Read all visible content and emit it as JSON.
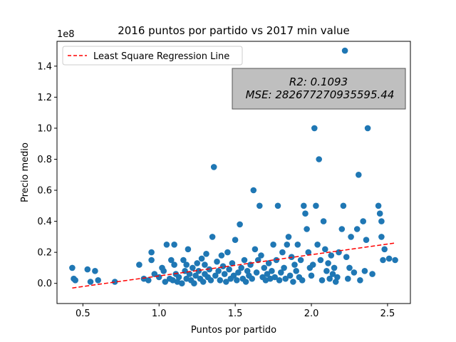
{
  "chart_data": {
    "type": "scatter",
    "title": "2016 puntos por partido vs 2017 min value",
    "xlabel": "Puntos por partido",
    "ylabel": "Precio medio",
    "offset_label": "1e8",
    "xlim": [
      0.33,
      2.65
    ],
    "ylim": [
      -0.13,
      1.56
    ],
    "xticks": [
      0.5,
      1.0,
      1.5,
      2.0,
      2.5
    ],
    "xtick_labels": [
      "0.5",
      "1.0",
      "1.5",
      "2.0",
      "2.5"
    ],
    "yticks": [
      0.0,
      0.2,
      0.4,
      0.6,
      0.8,
      1.0,
      1.2,
      1.4
    ],
    "ytick_labels": [
      "0.0",
      "0.2",
      "0.4",
      "0.6",
      "0.8",
      "1.0",
      "1.2",
      "1.4"
    ],
    "grid": false,
    "legend": {
      "position": "upper-left",
      "entries": [
        "Least Square Regression Line"
      ]
    },
    "regression_line": {
      "x": [
        0.43,
        2.55
      ],
      "y": [
        -0.03,
        0.26
      ],
      "color": "#ff0000",
      "style": "dashed"
    },
    "stats": {
      "r2": "R2: 0.1093",
      "mse": "MSE: 282677270935595.44"
    },
    "marker_color": "#1f77b4",
    "points": [
      [
        0.43,
        0.1
      ],
      [
        0.44,
        0.03
      ],
      [
        0.45,
        0.02
      ],
      [
        0.53,
        0.09
      ],
      [
        0.55,
        0.01
      ],
      [
        0.58,
        0.08
      ],
      [
        0.6,
        0.02
      ],
      [
        0.71,
        0.01
      ],
      [
        0.87,
        0.12
      ],
      [
        0.9,
        0.03
      ],
      [
        0.93,
        0.02
      ],
      [
        0.95,
        0.2
      ],
      [
        0.95,
        0.15
      ],
      [
        0.97,
        0.06
      ],
      [
        1.0,
        0.04
      ],
      [
        1.02,
        0.1
      ],
      [
        1.03,
        0.08
      ],
      [
        1.04,
        0.01
      ],
      [
        1.05,
        0.25
      ],
      [
        1.07,
        0.03
      ],
      [
        1.08,
        0.15
      ],
      [
        1.09,
        0.02
      ],
      [
        1.1,
        0.25
      ],
      [
        1.1,
        0.12
      ],
      [
        1.11,
        0.06
      ],
      [
        1.12,
        0.01
      ],
      [
        1.13,
        0.04
      ],
      [
        1.15,
        0.0
      ],
      [
        1.16,
        0.15
      ],
      [
        1.17,
        0.08
      ],
      [
        1.18,
        0.12
      ],
      [
        1.18,
        0.03
      ],
      [
        1.19,
        0.22
      ],
      [
        1.2,
        0.06
      ],
      [
        1.21,
        0.02
      ],
      [
        1.22,
        0.1
      ],
      [
        1.23,
        0.0
      ],
      [
        1.24,
        0.05
      ],
      [
        1.25,
        0.13
      ],
      [
        1.26,
        0.08
      ],
      [
        1.27,
        0.03
      ],
      [
        1.28,
        0.16
      ],
      [
        1.29,
        0.01
      ],
      [
        1.3,
        0.06
      ],
      [
        1.3,
        0.12
      ],
      [
        1.31,
        0.19
      ],
      [
        1.32,
        0.04
      ],
      [
        1.33,
        0.09
      ],
      [
        1.34,
        0.02
      ],
      [
        1.35,
        0.3
      ],
      [
        1.36,
        0.75
      ],
      [
        1.37,
        0.05
      ],
      [
        1.38,
        0.14
      ],
      [
        1.39,
        0.08
      ],
      [
        1.4,
        0.02
      ],
      [
        1.41,
        0.18
      ],
      [
        1.42,
        0.11
      ],
      [
        1.43,
        0.06
      ],
      [
        1.44,
        0.01
      ],
      [
        1.45,
        0.2
      ],
      [
        1.46,
        0.09
      ],
      [
        1.47,
        0.03
      ],
      [
        1.48,
        0.13
      ],
      [
        1.49,
        0.05
      ],
      [
        1.5,
        0.28
      ],
      [
        1.51,
        0.02
      ],
      [
        1.52,
        0.07
      ],
      [
        1.53,
        0.38
      ],
      [
        1.54,
        0.1
      ],
      [
        1.55,
        0.03
      ],
      [
        1.56,
        0.15
      ],
      [
        1.57,
        0.01
      ],
      [
        1.58,
        0.08
      ],
      [
        1.59,
        0.05
      ],
      [
        1.6,
        0.12
      ],
      [
        1.61,
        0.03
      ],
      [
        1.62,
        0.6
      ],
      [
        1.63,
        0.22
      ],
      [
        1.64,
        0.07
      ],
      [
        1.65,
        0.15
      ],
      [
        1.66,
        0.5
      ],
      [
        1.67,
        0.18
      ],
      [
        1.68,
        0.04
      ],
      [
        1.69,
        0.1
      ],
      [
        1.7,
        0.02
      ],
      [
        1.71,
        0.06
      ],
      [
        1.72,
        0.13
      ],
      [
        1.73,
        0.03
      ],
      [
        1.74,
        0.08
      ],
      [
        1.75,
        0.25
      ],
      [
        1.76,
        0.04
      ],
      [
        1.77,
        0.15
      ],
      [
        1.78,
        0.5
      ],
      [
        1.79,
        0.02
      ],
      [
        1.8,
        0.07
      ],
      [
        1.81,
        0.2
      ],
      [
        1.82,
        0.1
      ],
      [
        1.83,
        0.03
      ],
      [
        1.84,
        0.25
      ],
      [
        1.85,
        0.3
      ],
      [
        1.86,
        0.05
      ],
      [
        1.87,
        0.17
      ],
      [
        1.88,
        0.01
      ],
      [
        1.89,
        0.12
      ],
      [
        1.9,
        0.08
      ],
      [
        1.91,
        0.25
      ],
      [
        1.92,
        0.04
      ],
      [
        1.93,
        0.15
      ],
      [
        1.94,
        0.02
      ],
      [
        1.95,
        0.5
      ],
      [
        1.96,
        0.45
      ],
      [
        1.97,
        0.35
      ],
      [
        1.98,
        0.2
      ],
      [
        1.99,
        0.1
      ],
      [
        2.0,
        0.05
      ],
      [
        2.01,
        0.12
      ],
      [
        2.02,
        1.0
      ],
      [
        2.03,
        0.5
      ],
      [
        2.04,
        0.25
      ],
      [
        2.05,
        0.8
      ],
      [
        2.06,
        0.15
      ],
      [
        2.07,
        0.02
      ],
      [
        2.08,
        0.4
      ],
      [
        2.09,
        0.22
      ],
      [
        2.1,
        0.08
      ],
      [
        2.11,
        0.13
      ],
      [
        2.12,
        0.03
      ],
      [
        2.13,
        0.18
      ],
      [
        2.14,
        0.06
      ],
      [
        2.15,
        0.1
      ],
      [
        2.16,
        0.01
      ],
      [
        2.17,
        0.04
      ],
      [
        2.18,
        0.2
      ],
      [
        2.2,
        0.35
      ],
      [
        2.21,
        0.5
      ],
      [
        2.22,
        1.5
      ],
      [
        2.23,
        0.17
      ],
      [
        2.24,
        0.03
      ],
      [
        2.25,
        0.1
      ],
      [
        2.26,
        0.3
      ],
      [
        2.28,
        0.07
      ],
      [
        2.3,
        0.35
      ],
      [
        2.31,
        0.7
      ],
      [
        2.32,
        0.02
      ],
      [
        2.34,
        0.4
      ],
      [
        2.35,
        0.08
      ],
      [
        2.36,
        0.28
      ],
      [
        2.37,
        1.0
      ],
      [
        2.4,
        0.06
      ],
      [
        2.44,
        0.5
      ],
      [
        2.45,
        0.45
      ],
      [
        2.46,
        0.4
      ],
      [
        2.46,
        0.3
      ],
      [
        2.47,
        0.15
      ],
      [
        2.48,
        0.22
      ],
      [
        2.51,
        0.16
      ],
      [
        2.55,
        0.15
      ]
    ]
  }
}
